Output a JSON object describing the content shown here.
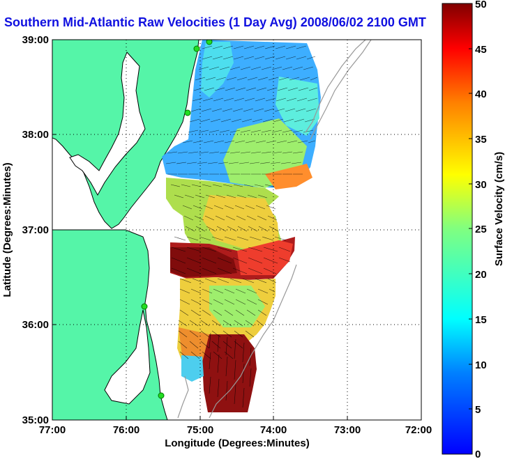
{
  "title": "Southern Mid-Atlantic Raw Velocities (1 Day Avg) 2008/06/02 2100 GMT",
  "x_axis": {
    "label": "Longitude (Degrees:Minutes)",
    "ticks": [
      "77:00",
      "76:00",
      "75:00",
      "74:00",
      "73:00",
      "72:00"
    ]
  },
  "y_axis": {
    "label": "Latitude (Degrees:Minutes)",
    "ticks": [
      "39:00",
      "38:00",
      "37:00",
      "36:00",
      "35:00"
    ]
  },
  "colorbar": {
    "label": "Surface Velocity (cm/s)",
    "ticks": [
      "0",
      "5",
      "10",
      "15",
      "20",
      "25",
      "30",
      "35",
      "40",
      "45",
      "50"
    ],
    "range": [
      0,
      50
    ],
    "colormap": "jet"
  },
  "colors": {
    "title": "#1010e0",
    "land": "#55f5a8",
    "water": "#ffffff",
    "coastline": "#000000",
    "bathymetry": "#999999",
    "vectors": "#000000",
    "stations": "#22dd22"
  },
  "map_extent": {
    "lon_range": [
      "77:00 W",
      "72:00 W"
    ],
    "lat_range": [
      "35:00 N",
      "39:00 N"
    ],
    "grid": "dotted"
  },
  "icons": [
    "radar-station-icon"
  ]
}
